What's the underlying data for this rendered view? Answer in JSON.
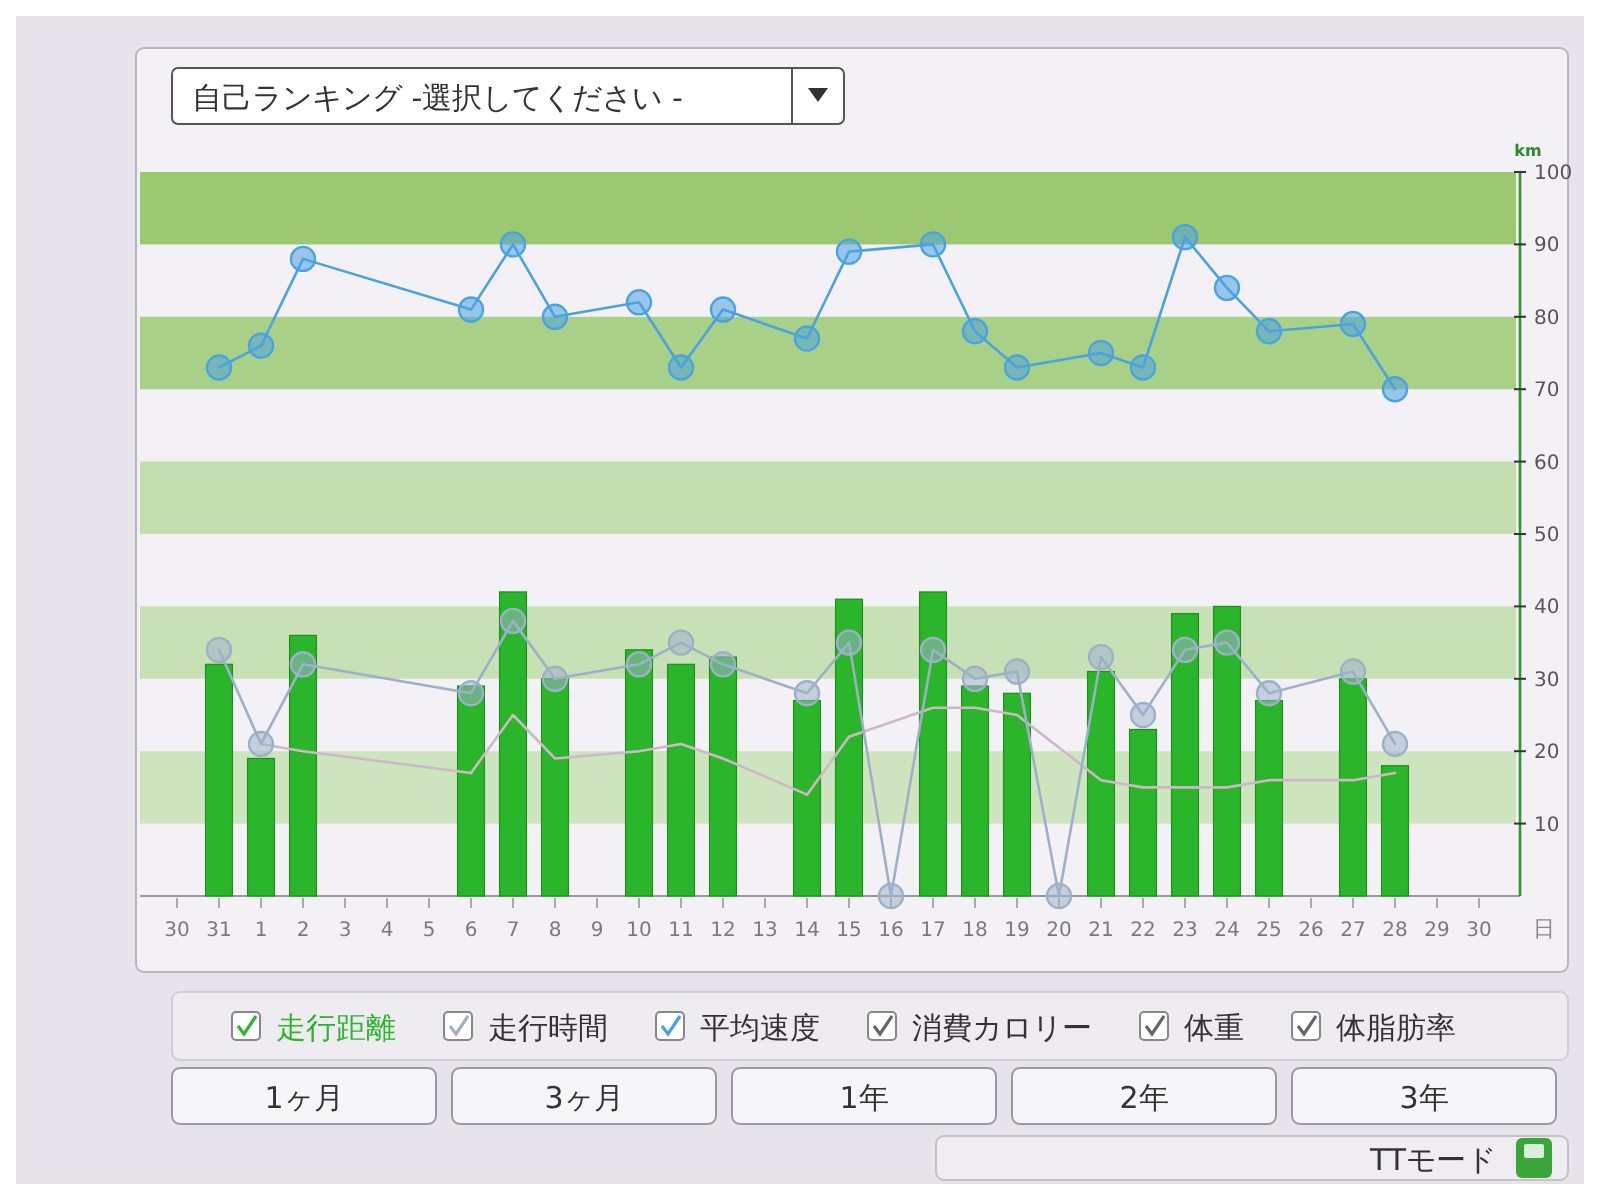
{
  "chart_data": {
    "type": "bar",
    "title": "自己ランキング -選択してください -",
    "xlabel": "日",
    "ylabel": "km",
    "categories": [
      "30",
      "31",
      "1",
      "2",
      "3",
      "4",
      "5",
      "6",
      "7",
      "8",
      "9",
      "10",
      "11",
      "12",
      "13",
      "14",
      "15",
      "16",
      "17",
      "18",
      "19",
      "20",
      "21",
      "22",
      "23",
      "24",
      "25",
      "26",
      "27",
      "28",
      "29",
      "30"
    ],
    "series": [
      {
        "name": "走行距離",
        "type": "bar",
        "color": "#2bb52b",
        "values": [
          null,
          32,
          19,
          36,
          null,
          null,
          null,
          29,
          42,
          30,
          null,
          34,
          32,
          33,
          null,
          27,
          41,
          null,
          42,
          29,
          28,
          null,
          31,
          23,
          39,
          40,
          27,
          null,
          30,
          18,
          null,
          null
        ]
      },
      {
        "type": "line",
        "color": "#cdb9c6",
        "marker": "none",
        "values": [
          null,
          null,
          21,
          20,
          null,
          null,
          null,
          17,
          25,
          19,
          null,
          20,
          21,
          19,
          null,
          14,
          22,
          null,
          26,
          26,
          25,
          null,
          16,
          15,
          15,
          15,
          16,
          null,
          16,
          17,
          null,
          null
        ]
      },
      {
        "name": "走行時間",
        "type": "line",
        "color": "#9db0c8",
        "values": [
          null,
          34,
          21,
          32,
          null,
          null,
          null,
          28,
          38,
          30,
          null,
          32,
          35,
          32,
          null,
          28,
          35,
          0,
          34,
          30,
          31,
          0,
          33,
          25,
          34,
          35,
          28,
          null,
          31,
          21,
          null,
          null
        ]
      },
      {
        "name": "平均速度",
        "type": "line",
        "color": "#4aa3e0",
        "values": [
          null,
          73,
          76,
          88,
          null,
          null,
          null,
          81,
          90,
          80,
          null,
          82,
          73,
          81,
          null,
          77,
          89,
          null,
          90,
          78,
          73,
          null,
          75,
          73,
          91,
          84,
          78,
          null,
          79,
          70,
          null,
          null
        ]
      },
      {
        "name": "消費カロリー",
        "type": "line",
        "values": [
          null,
          null,
          null,
          null,
          null,
          null,
          null,
          null,
          null,
          null,
          null,
          null,
          null,
          null,
          null,
          null,
          null,
          null,
          null,
          null,
          null,
          null,
          null,
          null,
          null,
          null,
          null,
          null,
          null,
          null,
          null,
          null
        ]
      },
      {
        "name": "体重",
        "type": "line",
        "values": [
          null,
          null,
          null,
          null,
          null,
          null,
          null,
          null,
          null,
          null,
          null,
          null,
          null,
          null,
          null,
          null,
          null,
          null,
          null,
          null,
          null,
          null,
          null,
          null,
          null,
          null,
          null,
          null,
          null,
          null,
          null,
          null
        ]
      },
      {
        "name": "体脂肪率",
        "type": "line",
        "values": [
          null,
          null,
          null,
          null,
          null,
          null,
          null,
          null,
          null,
          null,
          null,
          null,
          null,
          null,
          null,
          null,
          null,
          null,
          null,
          null,
          null,
          null,
          null,
          null,
          null,
          null,
          null,
          null,
          null,
          null,
          null,
          null
        ]
      }
    ],
    "ylim": [
      0,
      100
    ],
    "yticks": [
      10,
      20,
      30,
      40,
      50,
      60,
      70,
      80,
      90,
      100
    ],
    "bands": [
      {
        "axis": "y",
        "from": 90,
        "to": 100,
        "color": "#9cc872"
      },
      {
        "axis": "y",
        "from": 70,
        "to": 80,
        "color": "#a8d086"
      },
      {
        "axis": "y",
        "from": 50,
        "to": 60,
        "color": "#c4deb0"
      },
      {
        "axis": "y",
        "from": 30,
        "to": 40,
        "color": "#c8e0b6"
      },
      {
        "axis": "y",
        "from": 10,
        "to": 20,
        "color": "#cde4bf"
      }
    ],
    "marker": "circle",
    "legend": "bottom",
    "annotations": [
      "1ヶ月",
      "3ヶ月",
      "1年",
      "2年",
      "3年",
      "TTモード"
    ]
  }
}
